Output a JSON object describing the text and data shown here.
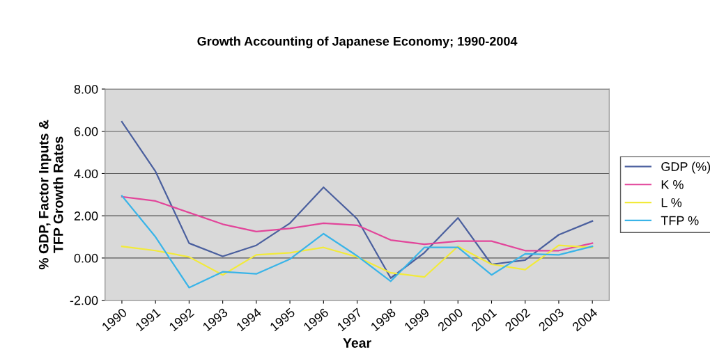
{
  "chart_data": {
    "type": "line",
    "title": "Growth Accounting of Japanese Economy; 1990-2004",
    "xlabel": "Year",
    "ylabel": "% GDP, Factor Inputs &\nTFP Growth Rates",
    "categories": [
      "1990",
      "1991",
      "1992",
      "1993",
      "1994",
      "1995",
      "1996",
      "1997",
      "1998",
      "1999",
      "2000",
      "2001",
      "2002",
      "2003",
      "2004"
    ],
    "series": [
      {
        "name": "GDP (%)",
        "color": "#4a5f9e",
        "values": [
          6.45,
          4.1,
          0.7,
          0.08,
          0.6,
          1.65,
          3.35,
          1.85,
          -0.95,
          0.25,
          1.9,
          -0.3,
          -0.1,
          1.1,
          1.75
        ]
      },
      {
        "name": "K %",
        "color": "#e2459a",
        "values": [
          2.9,
          2.7,
          2.15,
          1.6,
          1.25,
          1.4,
          1.65,
          1.55,
          0.85,
          0.65,
          0.8,
          0.8,
          0.35,
          0.35,
          0.7
        ]
      },
      {
        "name": "L %",
        "color": "#f2ea3a",
        "values": [
          0.55,
          0.35,
          0.05,
          -0.8,
          0.15,
          0.25,
          0.5,
          0.05,
          -0.7,
          -0.9,
          0.55,
          -0.3,
          -0.55,
          0.6,
          0.5
        ]
      },
      {
        "name": "TFP %",
        "color": "#39b4e8",
        "values": [
          2.95,
          1.0,
          -1.4,
          -0.65,
          -0.75,
          -0.05,
          1.15,
          0.1,
          -1.1,
          0.5,
          0.5,
          -0.8,
          0.2,
          0.15,
          0.55
        ]
      }
    ],
    "ylim": [
      -2,
      8
    ],
    "yticks": [
      {
        "value": -2,
        "label": "-2.00"
      },
      {
        "value": 0,
        "label": "0.00"
      },
      {
        "value": 2,
        "label": "2.00"
      },
      {
        "value": 4,
        "label": "4.00"
      },
      {
        "value": 6,
        "label": "6.00"
      },
      {
        "value": 8,
        "label": "8.00"
      }
    ],
    "grid": "y",
    "legend": "right",
    "marker": "none",
    "line_style": "solid"
  }
}
